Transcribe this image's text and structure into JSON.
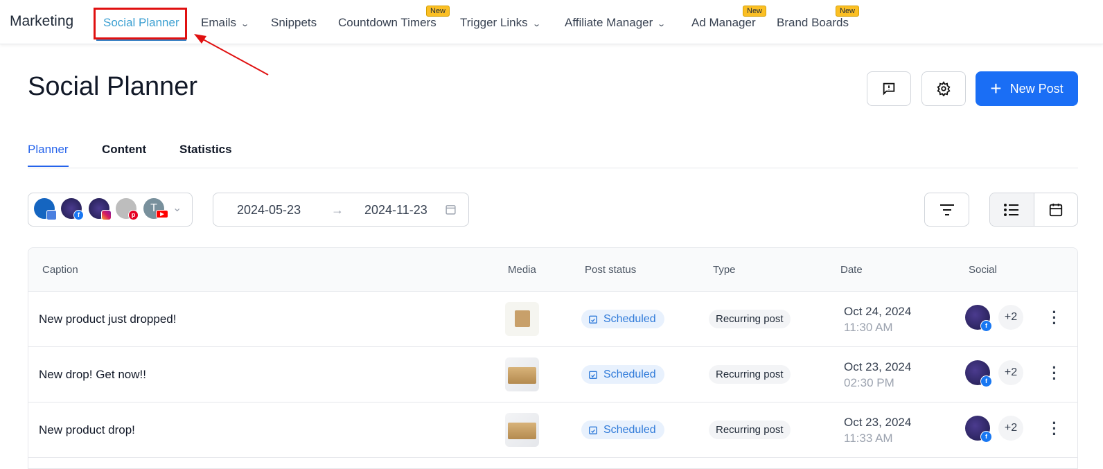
{
  "nav": {
    "brand": "Marketing",
    "items": [
      {
        "label": "Social Planner"
      },
      {
        "label": "Emails"
      },
      {
        "label": "Snippets"
      },
      {
        "label": "Countdown Timers",
        "badge": "New"
      },
      {
        "label": "Trigger Links"
      },
      {
        "label": "Affiliate Manager"
      },
      {
        "label": "Ad Manager",
        "badge": "New"
      },
      {
        "label": "Brand Boards",
        "badge": "New"
      }
    ]
  },
  "page": {
    "title": "Social Planner",
    "new_post": "New Post"
  },
  "tabs": [
    "Planner",
    "Content",
    "Statistics"
  ],
  "accounts": {
    "icons": [
      "google-business",
      "facebook",
      "instagram",
      "pinterest",
      "youtube"
    ],
    "youtube_initial": "T"
  },
  "range": {
    "start": "2024-05-23",
    "end": "2024-11-23"
  },
  "table": {
    "headers": [
      "Caption",
      "Media",
      "Post status",
      "Type",
      "Date",
      "Social"
    ],
    "rows": [
      {
        "caption": "New product just dropped!",
        "status": "Scheduled",
        "type": "Recurring post",
        "date": "Oct 24, 2024",
        "time": "11:30 AM",
        "extra": "+2"
      },
      {
        "caption": "New drop! Get now!!",
        "status": "Scheduled",
        "type": "Recurring post",
        "date": "Oct 23, 2024",
        "time": "02:30 PM",
        "extra": "+2"
      },
      {
        "caption": "New product drop!",
        "status": "Scheduled",
        "type": "Recurring post",
        "date": "Oct 23, 2024",
        "time": "11:33 AM",
        "extra": "+2"
      }
    ]
  },
  "colors": {
    "accent": "#1a6ef5",
    "active_tab": "#3b9fd1",
    "highlight": "#e01010",
    "badge": "#fbbf24"
  }
}
